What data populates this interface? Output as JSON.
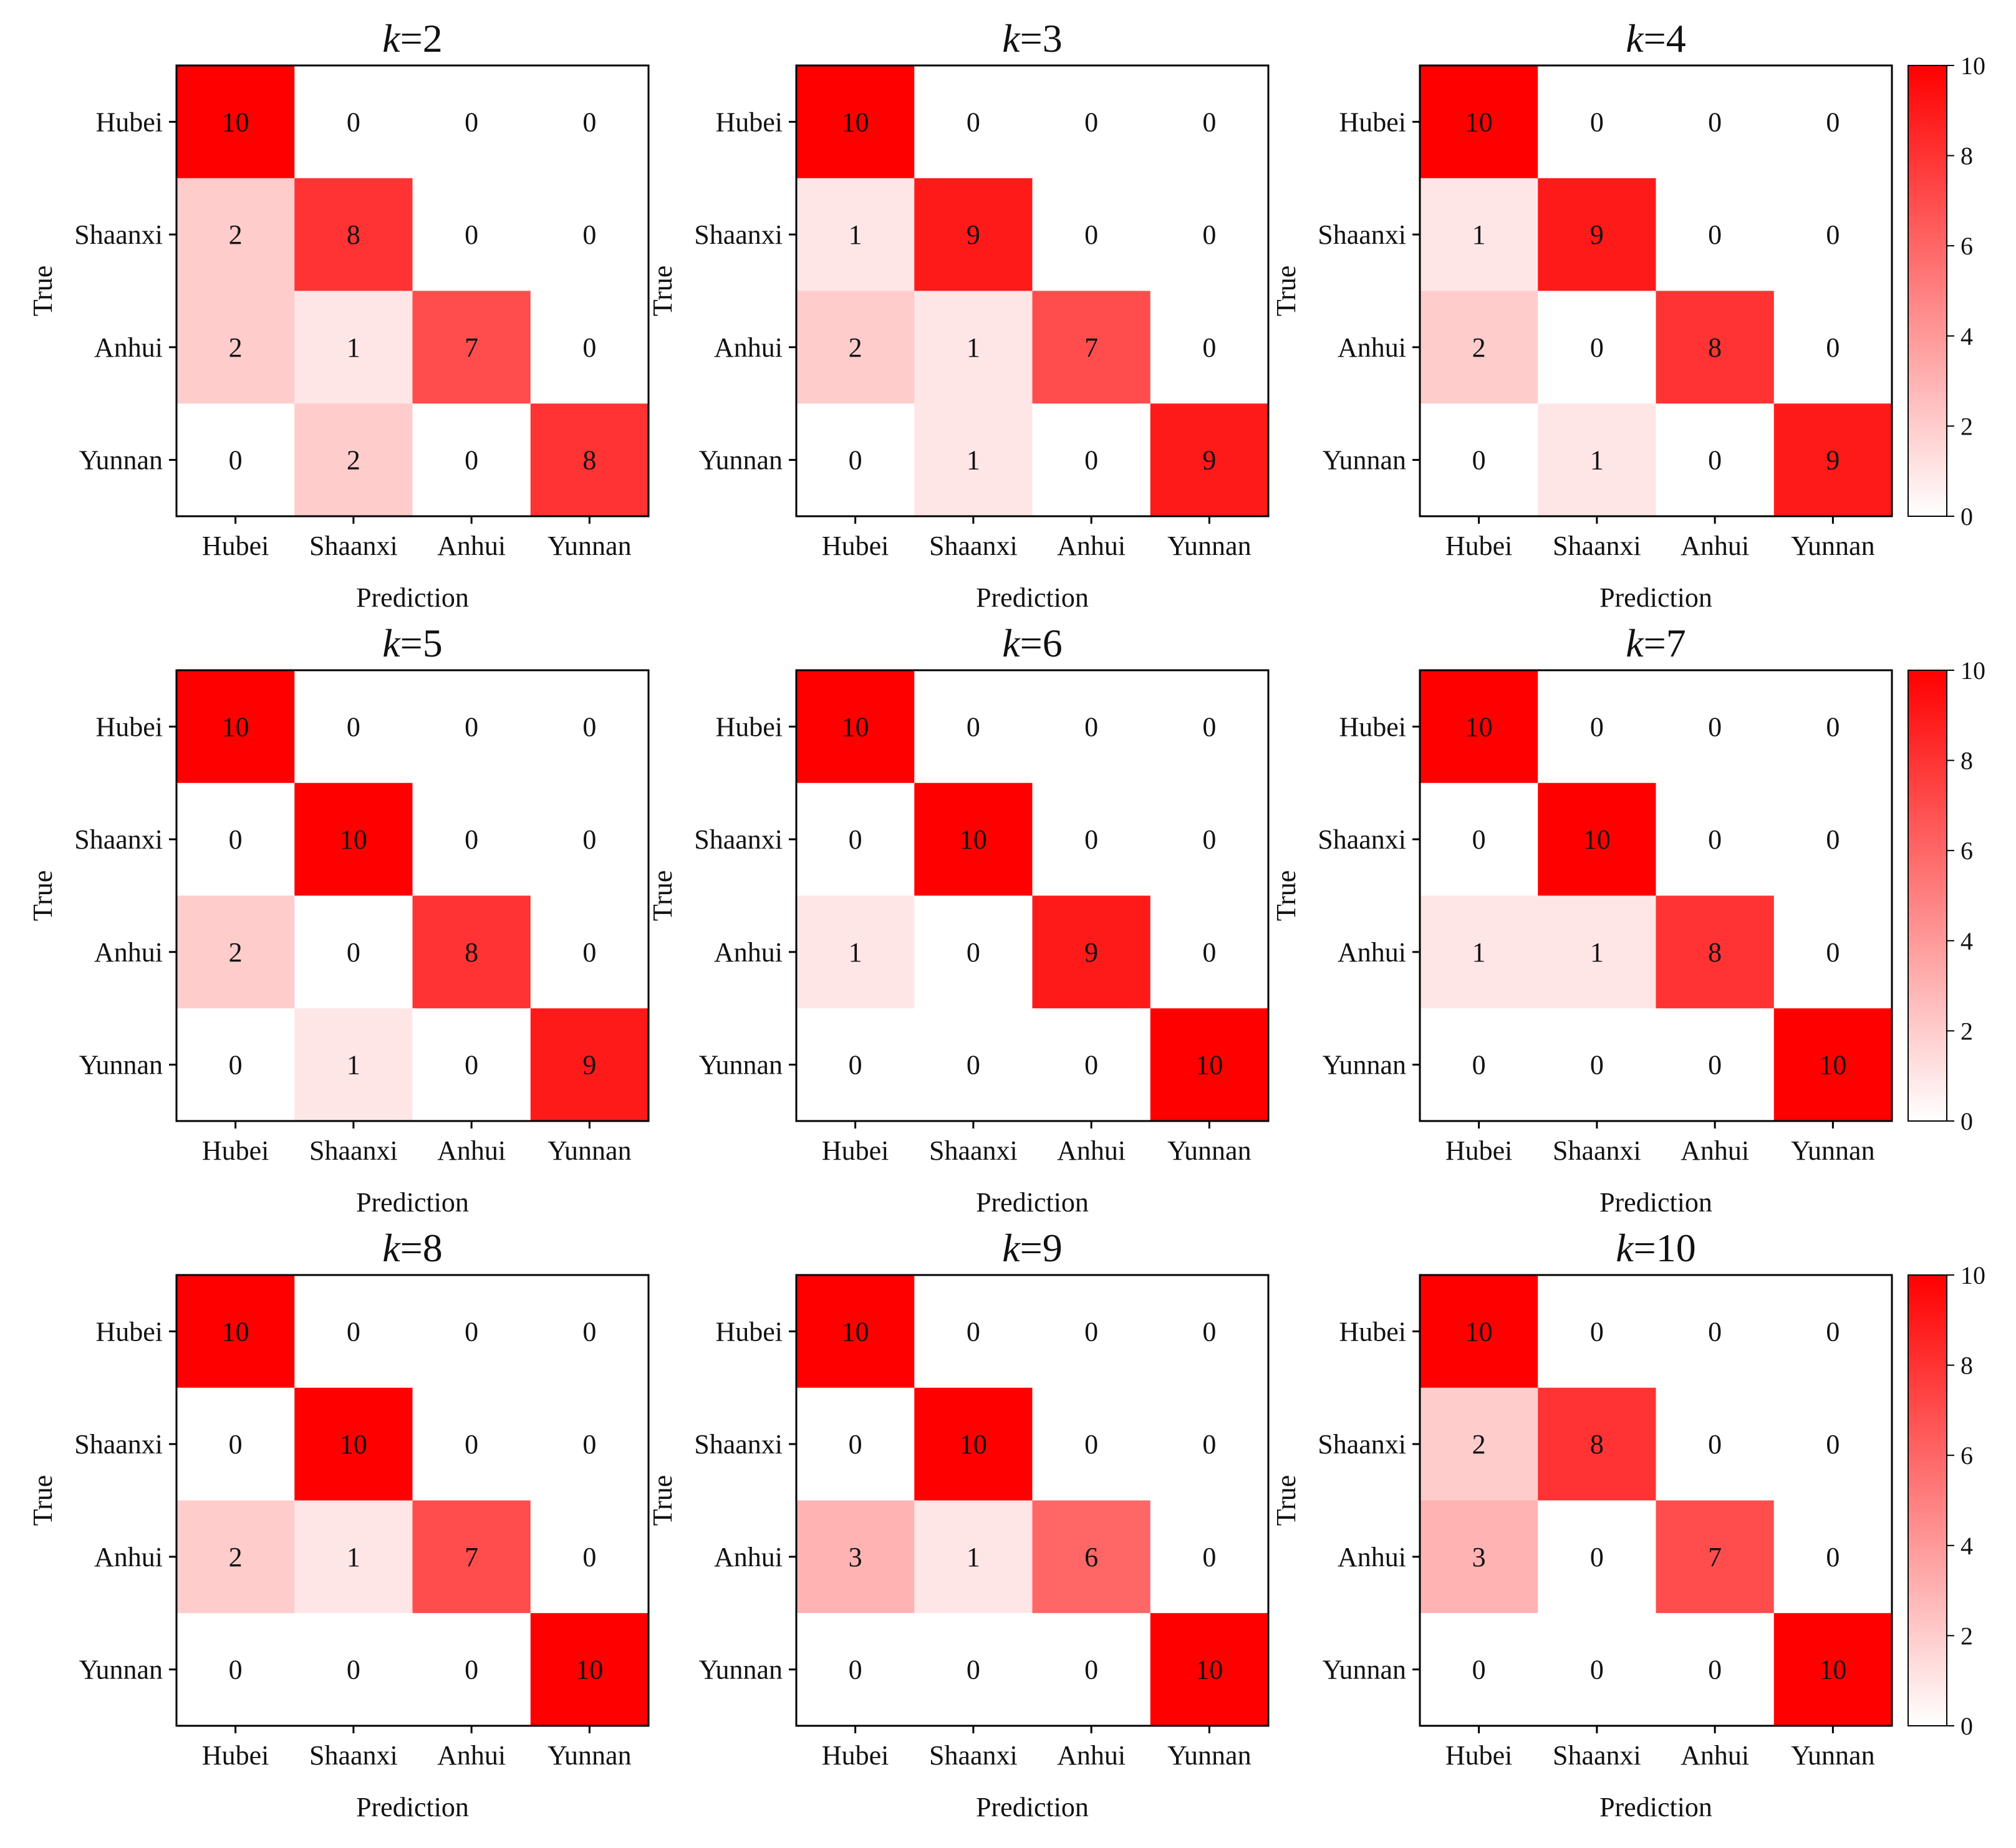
{
  "chart_data": [
    {
      "type": "heatmap",
      "title_var": "k",
      "title_eq": "=2",
      "categories": [
        "Hubei",
        "Shaanxi",
        "Anhui",
        "Yunnan"
      ],
      "xlabel": "Prediction",
      "ylabel": "True",
      "values": [
        [
          10,
          0,
          0,
          0
        ],
        [
          2,
          8,
          0,
          0
        ],
        [
          2,
          1,
          7,
          0
        ],
        [
          0,
          2,
          0,
          8
        ]
      ]
    },
    {
      "type": "heatmap",
      "title_var": "k",
      "title_eq": "=3",
      "categories": [
        "Hubei",
        "Shaanxi",
        "Anhui",
        "Yunnan"
      ],
      "xlabel": "Prediction",
      "ylabel": "True",
      "values": [
        [
          10,
          0,
          0,
          0
        ],
        [
          1,
          9,
          0,
          0
        ],
        [
          2,
          1,
          7,
          0
        ],
        [
          0,
          1,
          0,
          9
        ]
      ]
    },
    {
      "type": "heatmap",
      "title_var": "k",
      "title_eq": "=4",
      "categories": [
        "Hubei",
        "Shaanxi",
        "Anhui",
        "Yunnan"
      ],
      "xlabel": "Prediction",
      "ylabel": "True",
      "values": [
        [
          10,
          0,
          0,
          0
        ],
        [
          1,
          9,
          0,
          0
        ],
        [
          2,
          0,
          8,
          0
        ],
        [
          0,
          1,
          0,
          9
        ]
      ]
    },
    {
      "type": "heatmap",
      "title_var": "k",
      "title_eq": "=5",
      "categories": [
        "Hubei",
        "Shaanxi",
        "Anhui",
        "Yunnan"
      ],
      "xlabel": "Prediction",
      "ylabel": "True",
      "values": [
        [
          10,
          0,
          0,
          0
        ],
        [
          0,
          10,
          0,
          0
        ],
        [
          2,
          0,
          8,
          0
        ],
        [
          0,
          1,
          0,
          9
        ]
      ]
    },
    {
      "type": "heatmap",
      "title_var": "k",
      "title_eq": "=6",
      "categories": [
        "Hubei",
        "Shaanxi",
        "Anhui",
        "Yunnan"
      ],
      "xlabel": "Prediction",
      "ylabel": "True",
      "values": [
        [
          10,
          0,
          0,
          0
        ],
        [
          0,
          10,
          0,
          0
        ],
        [
          1,
          0,
          9,
          0
        ],
        [
          0,
          0,
          0,
          10
        ]
      ]
    },
    {
      "type": "heatmap",
      "title_var": "k",
      "title_eq": "=7",
      "categories": [
        "Hubei",
        "Shaanxi",
        "Anhui",
        "Yunnan"
      ],
      "xlabel": "Prediction",
      "ylabel": "True",
      "values": [
        [
          10,
          0,
          0,
          0
        ],
        [
          0,
          10,
          0,
          0
        ],
        [
          1,
          1,
          8,
          0
        ],
        [
          0,
          0,
          0,
          10
        ]
      ]
    },
    {
      "type": "heatmap",
      "title_var": "k",
      "title_eq": "=8",
      "categories": [
        "Hubei",
        "Shaanxi",
        "Anhui",
        "Yunnan"
      ],
      "xlabel": "Prediction",
      "ylabel": "True",
      "values": [
        [
          10,
          0,
          0,
          0
        ],
        [
          0,
          10,
          0,
          0
        ],
        [
          2,
          1,
          7,
          0
        ],
        [
          0,
          0,
          0,
          10
        ]
      ]
    },
    {
      "type": "heatmap",
      "title_var": "k",
      "title_eq": "=9",
      "categories": [
        "Hubei",
        "Shaanxi",
        "Anhui",
        "Yunnan"
      ],
      "xlabel": "Prediction",
      "ylabel": "True",
      "values": [
        [
          10,
          0,
          0,
          0
        ],
        [
          0,
          10,
          0,
          0
        ],
        [
          3,
          1,
          6,
          0
        ],
        [
          0,
          0,
          0,
          10
        ]
      ]
    },
    {
      "type": "heatmap",
      "title_var": "k",
      "title_eq": "=10",
      "categories": [
        "Hubei",
        "Shaanxi",
        "Anhui",
        "Yunnan"
      ],
      "xlabel": "Prediction",
      "ylabel": "True",
      "values": [
        [
          10,
          0,
          0,
          0
        ],
        [
          2,
          8,
          0,
          0
        ],
        [
          3,
          0,
          7,
          0
        ],
        [
          0,
          0,
          0,
          10
        ]
      ]
    }
  ],
  "colorbar": {
    "range": [
      0,
      10
    ],
    "ticks": [
      "0",
      "2",
      "4",
      "6",
      "8",
      "10"
    ],
    "color_low": "#ffffff",
    "color_high": "#ff0000"
  }
}
